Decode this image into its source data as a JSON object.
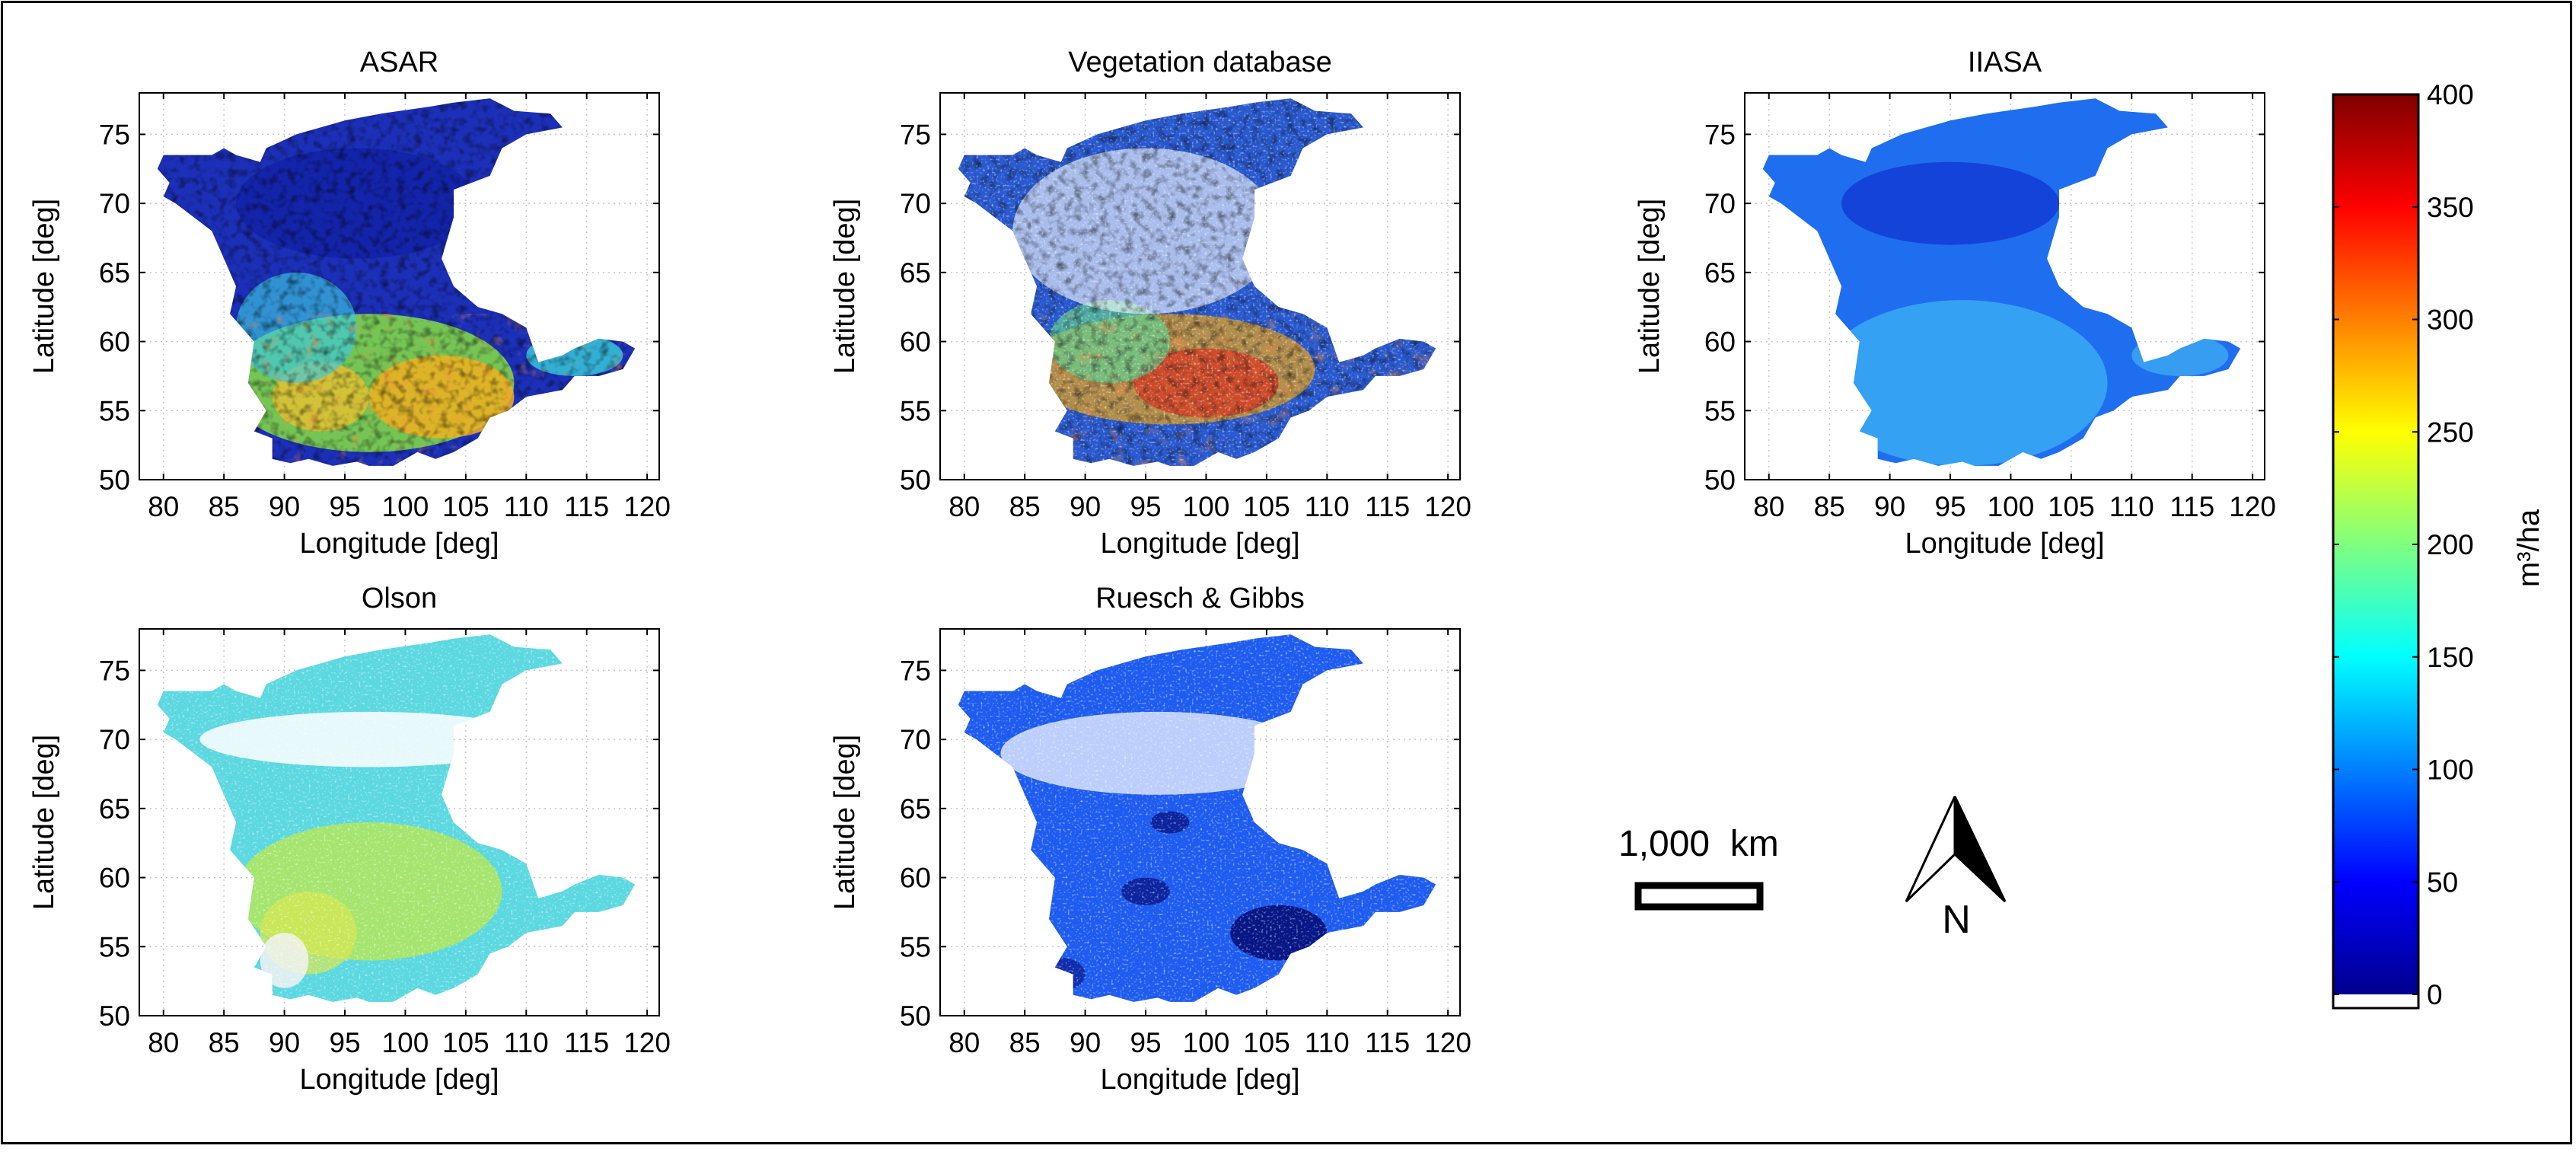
{
  "chart_data": [
    {
      "type": "heatmap",
      "title": "ASAR",
      "xlabel": "Longitude   [deg]",
      "ylabel": "Latitude   [deg]",
      "xlim": [
        78,
        121
      ],
      "ylim": [
        50,
        78
      ],
      "xticks": [
        80,
        85,
        90,
        95,
        100,
        105,
        110,
        115,
        120
      ],
      "yticks": [
        50,
        55,
        60,
        65,
        70,
        75
      ],
      "grid": true,
      "palette": "asar"
    },
    {
      "type": "heatmap",
      "title": "Vegetation database",
      "xlabel": "Longitude   [deg]",
      "ylabel": "Latitude   [deg]",
      "xlim": [
        78,
        121
      ],
      "ylim": [
        50,
        78
      ],
      "xticks": [
        80,
        85,
        90,
        95,
        100,
        105,
        110,
        115,
        120
      ],
      "yticks": [
        50,
        55,
        60,
        65,
        70,
        75
      ],
      "grid": true,
      "palette": "veg"
    },
    {
      "type": "heatmap",
      "title": "IIASA",
      "xlabel": "Longitude   [deg]",
      "ylabel": "Latitude   [deg]",
      "xlim": [
        78,
        121
      ],
      "ylim": [
        50,
        78
      ],
      "xticks": [
        80,
        85,
        90,
        95,
        100,
        105,
        110,
        115,
        120
      ],
      "yticks": [
        50,
        55,
        60,
        65,
        70,
        75
      ],
      "grid": true,
      "palette": "iiasa"
    },
    {
      "type": "heatmap",
      "title": "Olson",
      "xlabel": "Longitude   [deg]",
      "ylabel": "Latitude   [deg]",
      "xlim": [
        78,
        121
      ],
      "ylim": [
        50,
        78
      ],
      "xticks": [
        80,
        85,
        90,
        95,
        100,
        105,
        110,
        115,
        120
      ],
      "yticks": [
        50,
        55,
        60,
        65,
        70,
        75
      ],
      "grid": true,
      "palette": "olson"
    },
    {
      "type": "heatmap",
      "title": "Ruesch & Gibbs",
      "xlabel": "Longitude   [deg]",
      "ylabel": "Latitude   [deg]",
      "xlim": [
        78,
        121
      ],
      "ylim": [
        50,
        78
      ],
      "xticks": [
        80,
        85,
        90,
        95,
        100,
        105,
        110,
        115,
        120
      ],
      "yticks": [
        50,
        55,
        60,
        65,
        70,
        75
      ],
      "grid": true,
      "palette": "ruesch"
    }
  ],
  "colorbar": {
    "label": "m³/ha",
    "range": [
      0,
      400
    ],
    "ticks": [
      0,
      50,
      100,
      150,
      200,
      250,
      300,
      350,
      400
    ],
    "colormap": "jet"
  },
  "scale_bar": {
    "label": "1,000  km"
  },
  "north_arrow": {
    "label": "N"
  },
  "region_outline": [
    [
      89,
      51.5
    ],
    [
      89,
      53
    ],
    [
      87.5,
      53.5
    ],
    [
      88.5,
      55
    ],
    [
      87,
      57
    ],
    [
      87.5,
      60
    ],
    [
      85.5,
      62
    ],
    [
      86,
      64
    ],
    [
      85,
      66
    ],
    [
      84,
      68
    ],
    [
      81,
      70
    ],
    [
      80,
      70.5
    ],
    [
      80.5,
      71.5
    ],
    [
      79.5,
      72.5
    ],
    [
      80,
      73.5
    ],
    [
      84,
      73.5
    ],
    [
      85,
      74
    ],
    [
      86,
      73.5
    ],
    [
      88,
      73
    ],
    [
      88.5,
      74
    ],
    [
      91,
      75
    ],
    [
      95,
      76
    ],
    [
      98,
      76.5
    ],
    [
      102,
      77
    ],
    [
      104,
      77.3
    ],
    [
      107,
      77.6
    ],
    [
      109,
      76.7
    ],
    [
      112,
      76.5
    ],
    [
      113,
      75.5
    ],
    [
      110,
      75
    ],
    [
      108,
      74
    ],
    [
      107,
      72
    ],
    [
      104,
      71
    ],
    [
      104,
      69
    ],
    [
      103,
      66
    ],
    [
      104,
      64
    ],
    [
      106,
      62.5
    ],
    [
      108,
      62
    ],
    [
      110,
      61
    ],
    [
      111,
      58.5
    ],
    [
      113,
      59
    ],
    [
      114,
      59.5
    ],
    [
      116,
      60.2
    ],
    [
      118,
      60
    ],
    [
      119,
      59.5
    ],
    [
      118,
      58
    ],
    [
      116,
      57.5
    ],
    [
      114,
      57.5
    ],
    [
      113,
      56.5
    ],
    [
      110,
      56
    ],
    [
      108.5,
      55
    ],
    [
      107,
      54.5
    ],
    [
      106,
      53
    ],
    [
      104,
      52
    ],
    [
      102.5,
      51.5
    ],
    [
      101,
      52
    ],
    [
      99,
      51
    ],
    [
      97,
      51
    ],
    [
      96,
      51.3
    ],
    [
      94,
      51
    ],
    [
      92,
      51.5
    ],
    [
      90.5,
      51.2
    ]
  ]
}
